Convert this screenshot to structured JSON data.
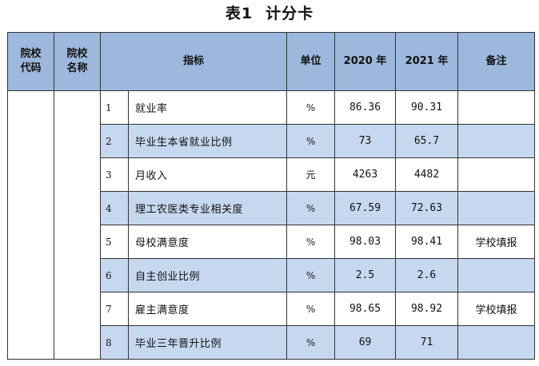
{
  "title": {
    "number": "表1",
    "text": "计分卡"
  },
  "headers": {
    "school_code": [
      "院校",
      "代码"
    ],
    "school_name": [
      "院校",
      "名称"
    ],
    "indicator": "指标",
    "unit": "单位",
    "y2020": "2020 年",
    "y2021": "2021 年",
    "note": "备注"
  },
  "rows": [
    {
      "no": "1",
      "indicator": "就业率",
      "unit": "%",
      "y2020": "86.36",
      "y2021": "90.31",
      "note": ""
    },
    {
      "no": "2",
      "indicator": "毕业生本省就业比例",
      "unit": "%",
      "y2020": "73",
      "y2021": "65.7",
      "note": ""
    },
    {
      "no": "3",
      "indicator": "月收入",
      "unit": "元",
      "y2020": "4263",
      "y2021": "4482",
      "note": ""
    },
    {
      "no": "4",
      "indicator": "理工农医类专业相关度",
      "unit": "%",
      "y2020": "67.59",
      "y2021": "72.63",
      "note": ""
    },
    {
      "no": "5",
      "indicator": "母校满意度",
      "unit": "%",
      "y2020": "98.03",
      "y2021": "98.41",
      "note": "学校填报"
    },
    {
      "no": "6",
      "indicator": "自主创业比例",
      "unit": "%",
      "y2020": "2.5",
      "y2021": "2.6",
      "note": ""
    },
    {
      "no": "7",
      "indicator": "雇主满意度",
      "unit": "%",
      "y2020": "98.65",
      "y2021": "98.92",
      "note": "学校填报"
    },
    {
      "no": "8",
      "indicator": "毕业三年晋升比例",
      "unit": "%",
      "y2020": "69",
      "y2021": "71",
      "note": ""
    }
  ]
}
